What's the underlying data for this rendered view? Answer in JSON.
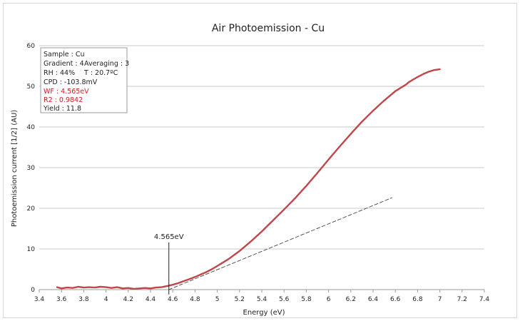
{
  "chart_data": {
    "type": "line",
    "title": "Air Photoemission - Cu",
    "xlabel": "Energy (eV)",
    "ylabel": "Photoemission current [1/2] (AU)",
    "xlim": [
      3.4,
      7.4
    ],
    "ylim": [
      0,
      60
    ],
    "x_ticks": [
      "3.4",
      "3.6",
      "3.8",
      "4",
      "4.2",
      "4.4",
      "4.6",
      "4.8",
      "5",
      "5.2",
      "5.4",
      "5.6",
      "5.8",
      "6",
      "6.2",
      "6.4",
      "6.6",
      "6.8",
      "7",
      "7.2",
      "7.4"
    ],
    "y_ticks": [
      "0",
      "10",
      "20",
      "30",
      "40",
      "50",
      "60"
    ],
    "grid": "horizontal",
    "series": [
      {
        "color": "#c0464a",
        "style": "solid",
        "x": [
          3.56,
          3.6,
          3.65,
          3.7,
          3.75,
          3.8,
          3.85,
          3.9,
          3.95,
          4.0,
          4.05,
          4.1,
          4.15,
          4.2,
          4.25,
          4.3,
          4.35,
          4.4,
          4.45,
          4.5,
          4.55,
          4.6,
          4.65,
          4.7,
          4.75,
          4.8,
          4.85,
          4.9,
          4.95,
          5.0,
          5.1,
          5.2,
          5.3,
          5.4,
          5.5,
          5.6,
          5.7,
          5.8,
          5.9,
          6.0,
          6.1,
          6.2,
          6.3,
          6.4,
          6.5,
          6.6,
          6.7,
          6.72,
          6.75,
          6.8,
          6.85,
          6.9,
          6.95,
          7.0
        ],
        "y": [
          0.6,
          0.3,
          0.5,
          0.4,
          0.7,
          0.5,
          0.6,
          0.5,
          0.7,
          0.6,
          0.4,
          0.6,
          0.3,
          0.4,
          0.2,
          0.3,
          0.4,
          0.3,
          0.5,
          0.6,
          0.9,
          1.2,
          1.6,
          2.1,
          2.6,
          3.1,
          3.7,
          4.3,
          5.0,
          5.8,
          7.5,
          9.5,
          11.8,
          14.3,
          17.0,
          19.7,
          22.5,
          25.5,
          28.7,
          32.0,
          35.2,
          38.3,
          41.3,
          44.0,
          46.5,
          48.8,
          50.5,
          51.0,
          51.5,
          52.3,
          53.0,
          53.6,
          54.0,
          54.2
        ]
      },
      {
        "color": "#444444",
        "style": "dashed",
        "x": [
          4.565,
          6.57
        ],
        "y": [
          0,
          22.6
        ]
      }
    ],
    "annotations": [
      {
        "text": "4.565eV",
        "x": 4.565
      }
    ]
  },
  "info_box": {
    "sample": "Sample : Cu",
    "gradient": "Gradient : 4",
    "averaging": "Averaging : 3",
    "rh": "RH : 44%",
    "temp": "T :  20.7ºC",
    "cpd": "CPD : -103.8mV",
    "wf": "WF : 4.565eV",
    "r2": "R2 : 0.9842",
    "yield": "Yield : 11.8"
  }
}
